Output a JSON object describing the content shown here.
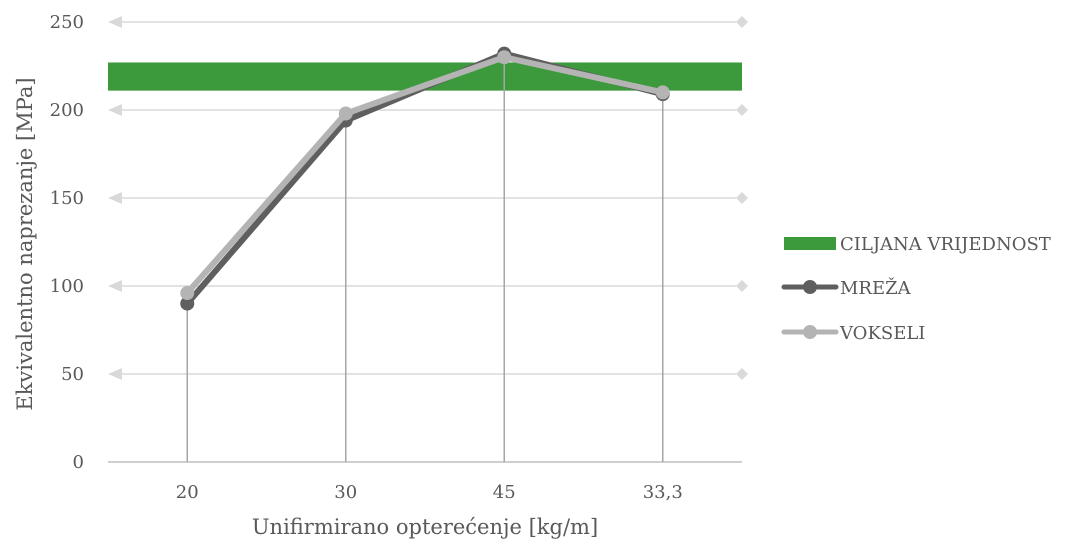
{
  "chart_data": {
    "type": "line",
    "title": "",
    "xlabel": "Unifirmirano opterećenje [kg/m]",
    "ylabel": "Ekvivalentno naprezanje [MPa]",
    "categories": [
      "20",
      "30",
      "45",
      "33,3"
    ],
    "ylim": [
      0,
      250
    ],
    "yticks": [
      "0",
      "50",
      "100",
      "150",
      "200",
      "250"
    ],
    "grid": true,
    "legend_placement": "right",
    "target_band": {
      "name": "CILJANA VRIJEDNOST",
      "low": 211,
      "high": 227,
      "color": "#3c9a3c"
    },
    "series": [
      {
        "name": "MREŽA",
        "values": [
          90,
          194,
          232,
          209
        ],
        "color": "#5f5f5f"
      },
      {
        "name": "VOKSELI",
        "values": [
          96,
          198,
          230,
          210
        ],
        "color": "#b4b4b4"
      }
    ]
  }
}
